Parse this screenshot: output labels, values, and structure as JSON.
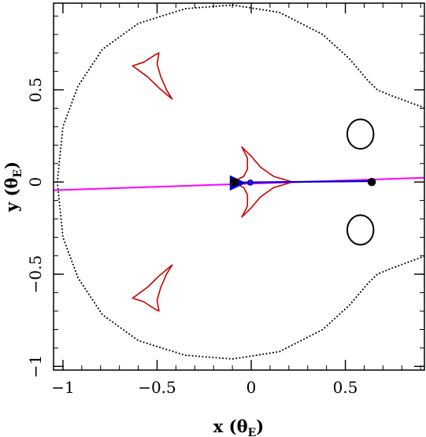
{
  "chart_data": {
    "type": "scatter",
    "xlabel": "x",
    "xunit": "θ",
    "xunit_sub": "E",
    "ylabel": "y",
    "yunit": "θ",
    "yunit_sub": "E",
    "xlim": [
      -1.05,
      0.92
    ],
    "ylim": [
      -1.02,
      0.97
    ],
    "xticks": [
      {
        "value": -1,
        "label": "−1"
      },
      {
        "value": -0.5,
        "label": "−0.5"
      },
      {
        "value": 0,
        "label": "0"
      },
      {
        "value": 0.5,
        "label": "0.5"
      }
    ],
    "yticks": [
      {
        "value": -1,
        "label": "−1"
      },
      {
        "value": -0.5,
        "label": "−0.5"
      },
      {
        "value": 0,
        "label": "0"
      },
      {
        "value": 0.5,
        "label": "0.5"
      }
    ],
    "minor_tick_step": 0.1,
    "grid": false,
    "colors": {
      "critical_curve": "#000000",
      "caustic": "#cc0000",
      "source_trajectory": "#ff00ff",
      "lens_axis": "#0000cc",
      "planet_images": "#000000",
      "markers": "#0000cc"
    },
    "series": [
      {
        "role": "critical-curve",
        "style": "dotted",
        "points": [
          [
            -1.03,
            0.0
          ],
          [
            -1.0,
            0.3
          ],
          [
            -0.92,
            0.52
          ],
          [
            -0.79,
            0.72
          ],
          [
            -0.6,
            0.86
          ],
          [
            -0.35,
            0.94
          ],
          [
            -0.1,
            0.96
          ],
          [
            0.15,
            0.92
          ],
          [
            0.38,
            0.8
          ],
          [
            0.52,
            0.67
          ],
          [
            0.62,
            0.55
          ],
          [
            0.67,
            0.5
          ],
          [
            0.74,
            0.47
          ],
          [
            0.82,
            0.44
          ],
          [
            0.9,
            0.41
          ],
          [
            0.93,
            0.4
          ],
          null,
          [
            -1.03,
            0.0
          ],
          [
            -1.0,
            -0.3
          ],
          [
            -0.92,
            -0.52
          ],
          [
            -0.79,
            -0.72
          ],
          [
            -0.6,
            -0.86
          ],
          [
            -0.35,
            -0.94
          ],
          [
            -0.1,
            -0.96
          ],
          [
            0.15,
            -0.92
          ],
          [
            0.38,
            -0.8
          ],
          [
            0.52,
            -0.67
          ],
          [
            0.62,
            -0.55
          ],
          [
            0.67,
            -0.5
          ],
          [
            0.74,
            -0.47
          ],
          [
            0.82,
            -0.44
          ],
          [
            0.9,
            -0.41
          ],
          [
            0.93,
            -0.4
          ]
        ]
      },
      {
        "role": "planet-critical-loop-upper",
        "style": "solid",
        "ellipse": {
          "cx": 0.58,
          "cy": 0.26,
          "rx": 0.07,
          "ry": 0.08
        }
      },
      {
        "role": "planet-critical-loop-lower",
        "style": "solid",
        "ellipse": {
          "cx": 0.58,
          "cy": -0.26,
          "rx": 0.07,
          "ry": 0.08
        }
      },
      {
        "role": "caustic-central",
        "points": [
          [
            -0.1,
            0.0
          ],
          [
            -0.04,
            0.03
          ],
          [
            -0.02,
            0.07
          ],
          [
            -0.02,
            0.13
          ],
          [
            -0.05,
            0.19
          ],
          [
            0.0,
            0.14
          ],
          [
            0.05,
            0.08
          ],
          [
            0.12,
            0.03
          ],
          [
            0.22,
            0.0
          ],
          [
            0.12,
            -0.03
          ],
          [
            0.05,
            -0.08
          ],
          [
            0.0,
            -0.14
          ],
          [
            -0.05,
            -0.19
          ],
          [
            -0.02,
            -0.13
          ],
          [
            -0.02,
            -0.07
          ],
          [
            -0.04,
            -0.03
          ],
          [
            -0.1,
            0.0
          ]
        ]
      },
      {
        "role": "caustic-upper",
        "points": [
          [
            -0.63,
            0.63
          ],
          [
            -0.57,
            0.65
          ],
          [
            -0.51,
            0.69
          ],
          [
            -0.49,
            0.7
          ],
          [
            -0.5,
            0.64
          ],
          [
            -0.48,
            0.57
          ],
          [
            -0.45,
            0.5
          ],
          [
            -0.42,
            0.45
          ],
          [
            -0.49,
            0.51
          ],
          [
            -0.55,
            0.57
          ],
          [
            -0.63,
            0.63
          ]
        ]
      },
      {
        "role": "caustic-lower",
        "points": [
          [
            -0.63,
            -0.63
          ],
          [
            -0.57,
            -0.65
          ],
          [
            -0.51,
            -0.69
          ],
          [
            -0.49,
            -0.7
          ],
          [
            -0.5,
            -0.64
          ],
          [
            -0.48,
            -0.57
          ],
          [
            -0.45,
            -0.5
          ],
          [
            -0.42,
            -0.45
          ],
          [
            -0.49,
            -0.51
          ],
          [
            -0.55,
            -0.57
          ],
          [
            -0.63,
            -0.63
          ]
        ]
      },
      {
        "role": "source-trajectory",
        "points": [
          [
            -1.05,
            -0.045
          ],
          [
            0.92,
            0.023
          ]
        ]
      },
      {
        "role": "lens-axis",
        "points": [
          [
            -0.1,
            -0.003
          ],
          [
            0.65,
            0.005
          ]
        ]
      }
    ],
    "points": [
      {
        "role": "host-star",
        "x": -0.09,
        "y": 0.0,
        "r": 0.022,
        "fill": "#000000"
      },
      {
        "role": "planet",
        "x": 0.64,
        "y": 0.0,
        "r": 0.022,
        "fill": "#000000"
      },
      {
        "role": "center-of-mass",
        "x": -0.005,
        "y": -0.003,
        "r": 0.012,
        "fill": "none"
      }
    ],
    "arrow": {
      "role": "source-direction",
      "x": -0.07,
      "y": -0.005,
      "dx": 0.06,
      "dy": 0.002
    }
  }
}
